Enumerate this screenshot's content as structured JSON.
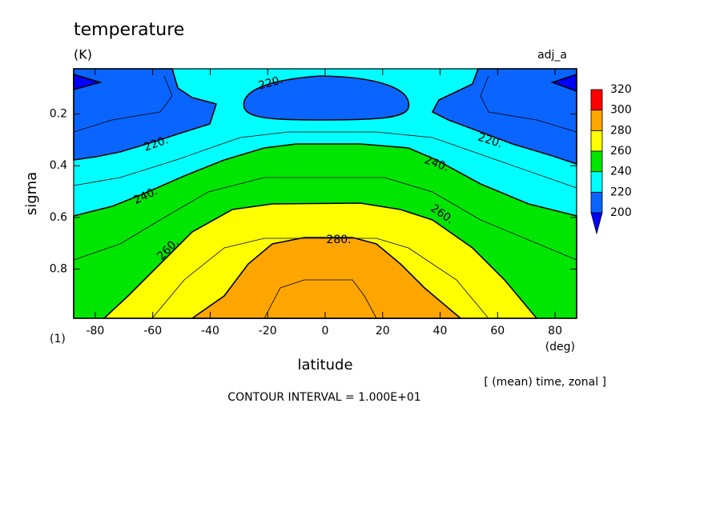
{
  "chart_data": {
    "type": "contour",
    "title": "temperature",
    "units": "(K)",
    "run_label": "adj_a",
    "y_label": "sigma",
    "x_label": "latitude",
    "x_units": "(deg)",
    "y_units": "(1)",
    "averaging_note": "[ (mean) time, zonal ]",
    "contour_interval": "CONTOUR INTERVAL = 1.000E+01",
    "xlim": [
      -87.5,
      87.5
    ],
    "xticks": [
      -80,
      -60,
      -40,
      -20,
      0,
      20,
      40,
      60,
      80
    ],
    "ylim": [
      0.025,
      0.99
    ],
    "yticks": [
      0.2,
      0.4,
      0.6,
      0.8
    ],
    "levels": [
      200,
      220,
      240,
      260,
      280,
      300,
      320
    ],
    "colors": [
      "#0000ff",
      "#0a64ff",
      "#00ffff",
      "#00e600",
      "#ffff00",
      "#ffa500",
      "#ff0000"
    ],
    "contour_labels": [
      "220.",
      "220.",
      "220.",
      "240.",
      "240.",
      "260.",
      "260.",
      "280."
    ]
  }
}
